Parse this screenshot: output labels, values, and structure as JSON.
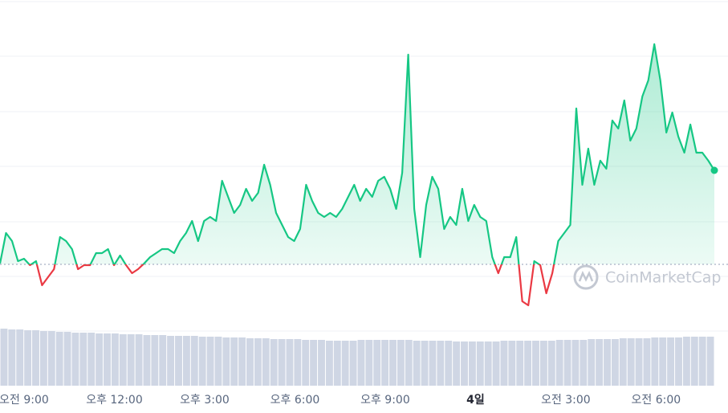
{
  "chart_data": {
    "type": "line",
    "watermark": "CoinMarketCap",
    "ylim": [
      0,
      480
    ],
    "xlim": [
      8.2,
      32.39
    ],
    "baseline": 151,
    "xticks": [
      {
        "value": 9,
        "label": "오전 9:00"
      },
      {
        "value": 12,
        "label": "오후 12:00"
      },
      {
        "value": 15,
        "label": "오후 3:00"
      },
      {
        "value": 18,
        "label": "오후 6:00"
      },
      {
        "value": 21,
        "label": "오후 9:00"
      },
      {
        "value": 24,
        "label": "4일"
      },
      {
        "value": 27,
        "label": "오전 3:00"
      },
      {
        "value": 30,
        "label": "오전 6:00"
      }
    ],
    "up_color": "#16c784",
    "down_color": "#ea3943",
    "volume_color": "#cfd6e4",
    "series": [
      {
        "name": "price",
        "values": [
          152,
          190,
          180,
          155,
          158,
          150,
          155,
          125,
          135,
          145,
          185,
          180,
          170,
          145,
          150,
          150,
          165,
          165,
          170,
          150,
          162,
          150,
          140,
          145,
          152,
          160,
          165,
          170,
          170,
          165,
          180,
          190,
          205,
          180,
          205,
          210,
          205,
          255,
          235,
          215,
          225,
          245,
          230,
          240,
          275,
          250,
          215,
          200,
          185,
          180,
          195,
          250,
          230,
          215,
          210,
          215,
          210,
          220,
          235,
          250,
          230,
          245,
          235,
          255,
          260,
          245,
          220,
          265,
          412,
          220,
          160,
          225,
          260,
          245,
          195,
          210,
          200,
          245,
          205,
          225,
          210,
          205,
          160,
          140,
          160,
          160,
          185,
          105,
          100,
          155,
          150,
          115,
          140,
          180,
          190,
          200,
          345,
          250,
          295,
          250,
          280,
          270,
          330,
          320,
          355,
          305,
          320,
          360,
          380,
          425,
          380,
          315,
          340,
          310,
          290,
          325,
          290,
          290,
          280,
          268
        ]
      },
      {
        "name": "volume",
        "values": [
          71,
          70,
          70,
          69,
          69,
          68,
          68,
          67,
          67,
          66,
          66,
          66,
          65,
          65,
          65,
          64,
          64,
          64,
          63,
          63,
          63,
          62,
          62,
          62,
          62,
          61,
          61,
          61,
          60,
          60,
          60,
          59,
          59,
          59,
          58,
          58,
          58,
          58,
          57,
          57,
          57,
          56,
          56,
          56,
          56,
          57,
          57,
          57,
          57,
          57,
          57,
          57,
          56,
          56,
          56,
          56,
          56,
          55,
          55,
          55,
          55,
          55,
          55,
          56,
          56,
          56,
          56,
          56,
          56,
          56,
          57,
          57,
          57,
          57,
          58,
          58,
          58,
          58,
          59,
          59,
          59,
          59,
          60,
          60,
          60,
          60,
          61,
          61,
          61,
          61
        ]
      }
    ]
  }
}
